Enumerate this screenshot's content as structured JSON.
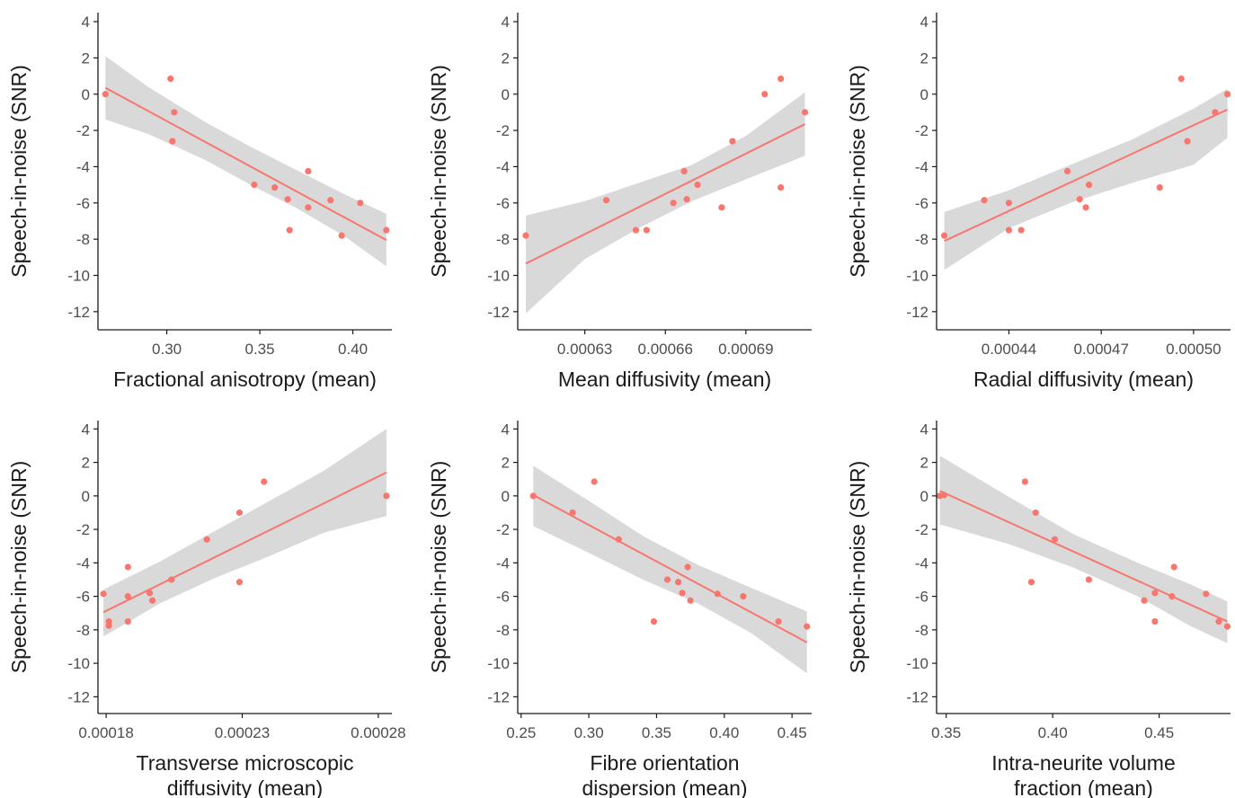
{
  "colors": {
    "points": "#f8766d",
    "line": "#f8766d",
    "ribbon": "#d9d9d9",
    "axis": "#1a1a1a",
    "tick_label": "#4d4d4d"
  },
  "chart_data": [
    {
      "type": "scatter",
      "xlabel": [
        "Fractional anisotropy (mean)"
      ],
      "ylabel": "Speech-in-noise (SNR)",
      "xlim": [
        0.263,
        0.421
      ],
      "ylim": [
        -13,
        4.5
      ],
      "xticks": [
        0.3,
        0.35,
        0.4
      ],
      "xtick_labels": [
        "0.30",
        "0.35",
        "0.40"
      ],
      "yticks": [
        4,
        2,
        0,
        -2,
        -4,
        -6,
        -8,
        -10,
        -12
      ],
      "ytick_labels": [
        "4",
        "2",
        "0",
        "-2",
        "-4",
        "-6",
        "-8",
        "-10",
        "-12"
      ],
      "points": [
        [
          0.267,
          0.0
        ],
        [
          0.302,
          0.85
        ],
        [
          0.304,
          -1.0
        ],
        [
          0.303,
          -2.6
        ],
        [
          0.347,
          -5.0
        ],
        [
          0.358,
          -5.15
        ],
        [
          0.365,
          -5.8
        ],
        [
          0.366,
          -7.5
        ],
        [
          0.376,
          -4.25
        ],
        [
          0.376,
          -6.25
        ],
        [
          0.388,
          -5.85
        ],
        [
          0.394,
          -7.8
        ],
        [
          0.404,
          -6.0
        ],
        [
          0.418,
          -7.5
        ]
      ],
      "fit_line": {
        "x": [
          0.267,
          0.418
        ],
        "y": [
          0.35,
          -8.05
        ]
      },
      "ci_band": {
        "x": [
          0.267,
          0.29,
          0.32,
          0.345,
          0.37,
          0.395,
          0.418
        ],
        "upper": [
          2.1,
          0.4,
          -1.5,
          -2.9,
          -4.2,
          -5.5,
          -6.6
        ],
        "lower": [
          -1.4,
          -2.2,
          -3.6,
          -5.0,
          -6.3,
          -7.8,
          -9.5
        ]
      }
    },
    {
      "type": "scatter",
      "xlabel": [
        "Mean diffusivity (mean)"
      ],
      "ylabel": "Speech-in-noise (SNR)",
      "xlim": [
        0.000605,
        0.0007145
      ],
      "ylim": [
        -13,
        4.5
      ],
      "xticks": [
        0.00063,
        0.00066,
        0.00069
      ],
      "xtick_labels": [
        "0.00063",
        "0.00066",
        "0.00069"
      ],
      "yticks": [
        4,
        2,
        0,
        -2,
        -4,
        -6,
        -8,
        -10,
        -12
      ],
      "ytick_labels": [
        "4",
        "2",
        "0",
        "-2",
        "-4",
        "-6",
        "-8",
        "-10",
        "-12"
      ],
      "points": [
        [
          0.000608,
          -7.8
        ],
        [
          0.000638,
          -5.85
        ],
        [
          0.000649,
          -7.5
        ],
        [
          0.000653,
          -7.5
        ],
        [
          0.000663,
          -6.0
        ],
        [
          0.000667,
          -4.25
        ],
        [
          0.000668,
          -5.8
        ],
        [
          0.000672,
          -5.0
        ],
        [
          0.000681,
          -6.25
        ],
        [
          0.000685,
          -2.6
        ],
        [
          0.000697,
          0.0
        ],
        [
          0.000703,
          0.85
        ],
        [
          0.000703,
          -5.15
        ],
        [
          0.000712,
          -1.0
        ]
      ],
      "fit_line": {
        "x": [
          0.000608,
          0.000712
        ],
        "y": [
          -9.35,
          -1.65
        ]
      },
      "ci_band": {
        "x": [
          0.000608,
          0.00063,
          0.00065,
          0.00067,
          0.00069,
          0.000712
        ],
        "upper": [
          -6.7,
          -5.9,
          -4.9,
          -3.9,
          -2.3,
          0.1
        ],
        "lower": [
          -12.1,
          -9.1,
          -7.4,
          -5.9,
          -4.7,
          -3.4
        ]
      }
    },
    {
      "type": "scatter",
      "xlabel": [
        "Radial diffusivity (mean)"
      ],
      "ylabel": "Speech-in-noise (SNR)",
      "xlim": [
        0.0004165,
        0.000512
      ],
      "ylim": [
        -13,
        4.5
      ],
      "xticks": [
        0.00044,
        0.00047,
        0.0005
      ],
      "xtick_labels": [
        "0.00044",
        "0.00047",
        "0.00050"
      ],
      "yticks": [
        4,
        2,
        0,
        -2,
        -4,
        -6,
        -8,
        -10,
        -12
      ],
      "ytick_labels": [
        "4",
        "2",
        "0",
        "-2",
        "-4",
        "-6",
        "-8",
        "-10",
        "-12"
      ],
      "points": [
        [
          0.000419,
          -7.8
        ],
        [
          0.000432,
          -5.85
        ],
        [
          0.00044,
          -6.0
        ],
        [
          0.00044,
          -7.5
        ],
        [
          0.000444,
          -7.5
        ],
        [
          0.000459,
          -4.25
        ],
        [
          0.000463,
          -5.8
        ],
        [
          0.000466,
          -5.0
        ],
        [
          0.000465,
          -6.25
        ],
        [
          0.000489,
          -5.15
        ],
        [
          0.000496,
          0.85
        ],
        [
          0.000498,
          -2.6
        ],
        [
          0.000507,
          -1.0
        ],
        [
          0.000511,
          0.0
        ]
      ],
      "fit_line": {
        "x": [
          0.000419,
          0.000511
        ],
        "y": [
          -8.1,
          -0.85
        ]
      },
      "ci_band": {
        "x": [
          0.000419,
          0.00044,
          0.00046,
          0.00048,
          0.0005,
          0.000511
        ],
        "upper": [
          -6.5,
          -5.3,
          -3.9,
          -2.5,
          -0.8,
          0.3
        ],
        "lower": [
          -9.7,
          -7.4,
          -6.0,
          -4.9,
          -3.9,
          -2.4
        ]
      }
    },
    {
      "type": "scatter",
      "xlabel": [
        "Transverse microscopic",
        "diffusivity (mean)"
      ],
      "ylabel": "Speech-in-noise (SNR)",
      "xlim": [
        0.000177,
        0.000285
      ],
      "ylim": [
        -13,
        4.5
      ],
      "xticks": [
        0.00018,
        0.00023,
        0.00028
      ],
      "xtick_labels": [
        "0.00018",
        "0.00023",
        "0.00028"
      ],
      "yticks": [
        4,
        2,
        0,
        -2,
        -4,
        -6,
        -8,
        -10,
        -12
      ],
      "ytick_labels": [
        "4",
        "2",
        "0",
        "-2",
        "-4",
        "-6",
        "-8",
        "-10",
        "-12"
      ],
      "points": [
        [
          0.000179,
          -5.85
        ],
        [
          0.000181,
          -7.5
        ],
        [
          0.000181,
          -7.75
        ],
        [
          0.000188,
          -4.25
        ],
        [
          0.000188,
          -6.0
        ],
        [
          0.000188,
          -7.5
        ],
        [
          0.000196,
          -5.8
        ],
        [
          0.000197,
          -6.25
        ],
        [
          0.000204,
          -5.0
        ],
        [
          0.000217,
          -2.6
        ],
        [
          0.000229,
          -1.0
        ],
        [
          0.000229,
          -5.15
        ],
        [
          0.000238,
          0.85
        ],
        [
          0.000283,
          0.0
        ]
      ],
      "fit_line": {
        "x": [
          0.000179,
          0.000283
        ],
        "y": [
          -6.95,
          1.4
        ]
      },
      "ci_band": {
        "x": [
          0.000179,
          0.0002,
          0.00022,
          0.00024,
          0.00026,
          0.000283
        ],
        "upper": [
          -5.6,
          -3.9,
          -2.1,
          -0.3,
          1.5,
          4.0
        ],
        "lower": [
          -8.4,
          -6.4,
          -4.9,
          -3.6,
          -2.2,
          -1.2
        ]
      }
    },
    {
      "type": "scatter",
      "xlabel": [
        "Fibre orientation",
        "dispersion (mean)"
      ],
      "ylabel": "Speech-in-noise (SNR)",
      "xlim": [
        0.2475,
        0.4645
      ],
      "ylim": [
        -13,
        4.5
      ],
      "xticks": [
        0.25,
        0.3,
        0.35,
        0.4,
        0.45
      ],
      "xtick_labels": [
        "0.25",
        "0.30",
        "0.35",
        "0.40",
        "0.45"
      ],
      "yticks": [
        4,
        2,
        0,
        -2,
        -4,
        -6,
        -8,
        -10,
        -12
      ],
      "ytick_labels": [
        "4",
        "2",
        "0",
        "-2",
        "-4",
        "-6",
        "-8",
        "-10",
        "-12"
      ],
      "points": [
        [
          0.259,
          0.0
        ],
        [
          0.288,
          -1.0
        ],
        [
          0.304,
          0.85
        ],
        [
          0.322,
          -2.6
        ],
        [
          0.348,
          -7.5
        ],
        [
          0.358,
          -5.0
        ],
        [
          0.366,
          -5.15
        ],
        [
          0.369,
          -5.8
        ],
        [
          0.373,
          -4.25
        ],
        [
          0.375,
          -6.25
        ],
        [
          0.395,
          -5.85
        ],
        [
          0.414,
          -6.0
        ],
        [
          0.44,
          -7.5
        ],
        [
          0.461,
          -7.8
        ]
      ],
      "fit_line": {
        "x": [
          0.259,
          0.461
        ],
        "y": [
          0.05,
          -8.75
        ]
      },
      "ci_band": {
        "x": [
          0.259,
          0.3,
          0.34,
          0.38,
          0.42,
          0.461
        ],
        "upper": [
          1.8,
          -0.3,
          -2.4,
          -4.1,
          -5.5,
          -6.9
        ],
        "lower": [
          -1.8,
          -3.4,
          -5.0,
          -6.4,
          -8.2,
          -10.6
        ]
      }
    },
    {
      "type": "scatter",
      "xlabel": [
        "Intra-neurite volume",
        "fraction (mean)"
      ],
      "ylabel": "Speech-in-noise (SNR)",
      "xlim": [
        0.3455,
        0.4835
      ],
      "ylim": [
        -13,
        4.5
      ],
      "xticks": [
        0.35,
        0.4,
        0.45
      ],
      "xtick_labels": [
        "0.35",
        "0.40",
        "0.45"
      ],
      "yticks": [
        4,
        2,
        0,
        -2,
        -4,
        -6,
        -8,
        -10,
        -12
      ],
      "ytick_labels": [
        "4",
        "2",
        "0",
        "-2",
        "-4",
        "-6",
        "-8",
        "-10",
        "-12"
      ],
      "points": [
        [
          0.347,
          0.0
        ],
        [
          0.349,
          0.05
        ],
        [
          0.387,
          0.85
        ],
        [
          0.39,
          -5.15
        ],
        [
          0.392,
          -1.0
        ],
        [
          0.401,
          -2.6
        ],
        [
          0.417,
          -5.0
        ],
        [
          0.443,
          -6.25
        ],
        [
          0.448,
          -5.8
        ],
        [
          0.448,
          -7.5
        ],
        [
          0.456,
          -6.0
        ],
        [
          0.457,
          -4.25
        ],
        [
          0.472,
          -5.85
        ],
        [
          0.478,
          -7.5
        ],
        [
          0.482,
          -7.8
        ]
      ],
      "fit_line": {
        "x": [
          0.347,
          0.482
        ],
        "y": [
          0.3,
          -7.5
        ]
      },
      "ci_band": {
        "x": [
          0.347,
          0.38,
          0.41,
          0.44,
          0.465,
          0.482
        ],
        "upper": [
          2.4,
          -0.1,
          -2.3,
          -4.0,
          -5.3,
          -6.3
        ],
        "lower": [
          -1.7,
          -2.9,
          -4.3,
          -6.0,
          -7.8,
          -8.8
        ]
      }
    }
  ]
}
